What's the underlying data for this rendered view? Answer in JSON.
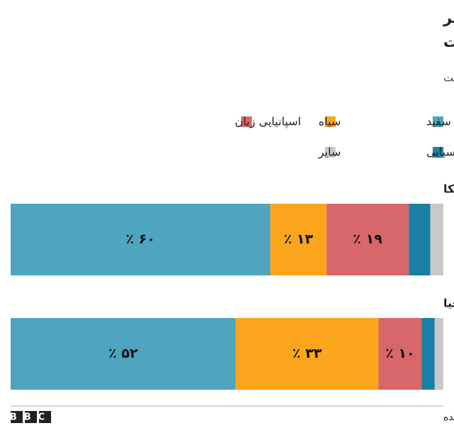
{
  "chart_data": {
    "type": "stacked-bar",
    "title": [
      "جمعیت سیاه پوستان ایالت جورجیا بیش از دو برابر",
      "نسبت جمعیتی آنان در سطح ملی است"
    ],
    "subtitle": "درصد کل جمعیت برای هر نژاد یا قومیت",
    "categories": [
      "آمریکا",
      "جورجیا"
    ],
    "xlim": [
      0,
      100
    ],
    "series": [
      {
        "name": "سفید",
        "color": "#4fa5bf",
        "values": [
          60,
          52
        ],
        "value_labels": [
          "٪ ۶۰",
          "٪ ۵۲"
        ]
      },
      {
        "name": "سیاه",
        "color": "#fba51c",
        "values": [
          13,
          33
        ],
        "value_labels": [
          "٪ ۱۳",
          "٪ ۳۳"
        ]
      },
      {
        "name": "اسپانیایی زبان",
        "color": "#d8676a",
        "values": [
          19,
          10
        ],
        "value_labels": [
          "٪ ۱۹",
          "٪ ۱۰"
        ]
      },
      {
        "name": "آسیایی",
        "color": "#1a7fa5",
        "values": [
          5,
          3
        ],
        "value_labels": [
          null,
          null
        ]
      },
      {
        "name": "سایر",
        "color": "#c9c9c9",
        "values": [
          3,
          2
        ],
        "value_labels": [
          null,
          null
        ]
      }
    ],
    "source": "منبع: دفتر سرشماری ایالات متحده",
    "logo": "BBC"
  }
}
